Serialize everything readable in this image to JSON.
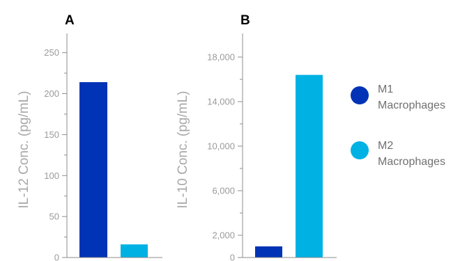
{
  "colors": {
    "m1": "#0033b5",
    "m2": "#00b2e3",
    "axis": "#8c8c8c",
    "tick_text": "#9a9a9a"
  },
  "legend": [
    {
      "line1": "M1",
      "line2": "Macrophages",
      "color": "#0033b5"
    },
    {
      "line1": "M2",
      "line2": "Macrophages",
      "color": "#00b2e3"
    }
  ],
  "chart_data": [
    {
      "type": "bar",
      "panel": "A",
      "ylabel": "IL-12 Conc. (pg/mL)",
      "categories": [
        "M1 Macrophages",
        "M2 Macrophages"
      ],
      "values": [
        214,
        16
      ],
      "ylim": [
        0,
        265
      ],
      "major_ticks": [
        0,
        50,
        100,
        150,
        200,
        250
      ],
      "tick_labels": [
        "0",
        "50",
        "100",
        "150",
        "200",
        "250"
      ],
      "minor_ticks": [
        25,
        75,
        125,
        175,
        225
      ],
      "grid": false
    },
    {
      "type": "bar",
      "panel": "B",
      "ylabel": "IL-10 Conc. (pg/mL)",
      "categories": [
        "M1 Macrophages",
        "M2 Macrophages"
      ],
      "values": [
        1000,
        16400
      ],
      "ylim": [
        0,
        19500
      ],
      "major_ticks": [
        0,
        2000,
        6000,
        10000,
        14000,
        18000
      ],
      "tick_labels": [
        "0",
        "2,000",
        "6,000",
        "10,000",
        "14,000",
        "18,000"
      ],
      "minor_ticks": [
        4000,
        8000,
        12000,
        16000
      ],
      "grid": false
    }
  ]
}
